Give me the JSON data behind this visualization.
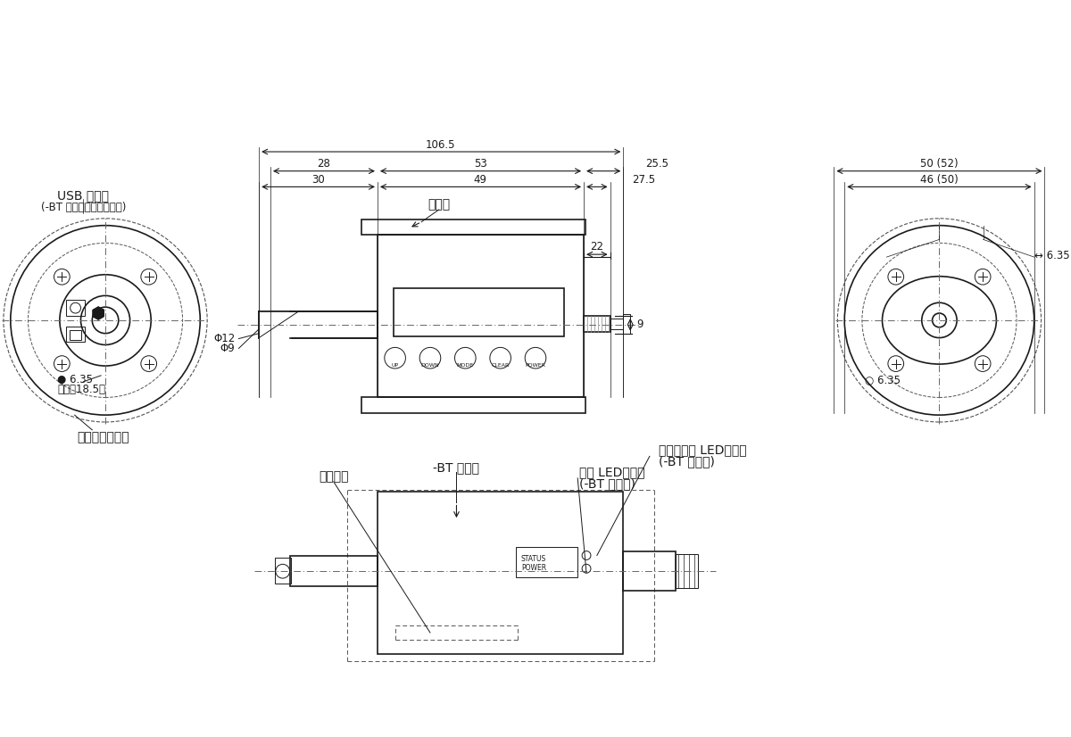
{
  "bg_color": "#ffffff",
  "line_color": "#1a1a1a",
  "dim_color": "#1a1a1a",
  "text_color": "#1a1a1a",
  "dashed_color": "#555555",
  "annotations": {
    "bt_type_label": "-BT 型のみ",
    "led_label": "接続確認用 LED（青）",
    "led_sub": "(-BT 型のみ)",
    "serial_label": "製造番号",
    "power_led_label": "電源 LED（赤）",
    "power_led_sub": "(-BT 型のみ)",
    "charge_jack_label": "充電用ジャック",
    "model_name_label": "型式名",
    "usb_label": "USB ポート",
    "usb_sub": "(-BT 型は使用できません)",
    "hex_left": "6.35",
    "hex_left_depth": "（深さ18.5）",
    "phi_label": "Φ12",
    "phi_sub": "Φ9",
    "hex_right": "6.35",
    "dim_30": "30",
    "dim_49": "49",
    "dim_27_5": "27.5",
    "dim_28": "28",
    "dim_53": "53",
    "dim_25_5": "25.5",
    "dim_106_5": "106.5",
    "dim_9": "9",
    "dim_22": "22",
    "dim_46_50": "46 (50)",
    "dim_50_52": "50 (52)"
  }
}
